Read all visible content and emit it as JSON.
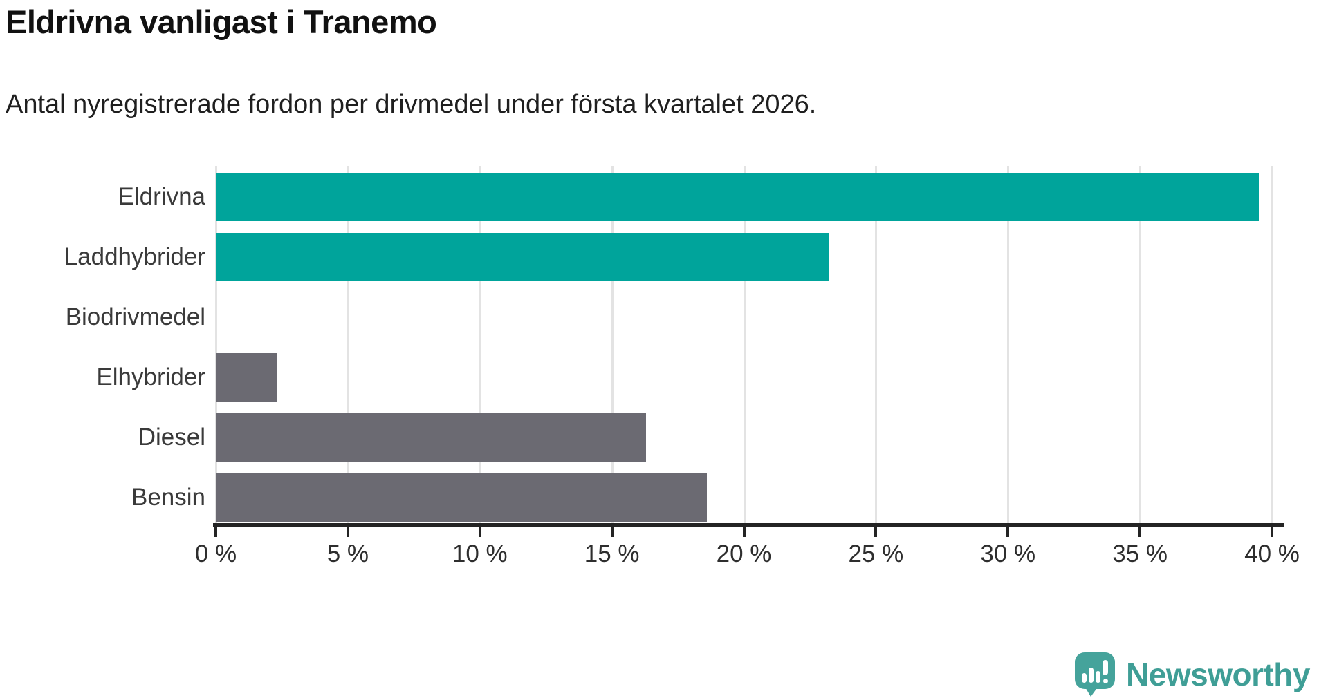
{
  "header": {
    "title": "Eldrivna vanligast i Tranemo",
    "subtitle": "Antal nyregistrerade fordon per drivmedel under första kvartalet 2026."
  },
  "chart_data": {
    "type": "bar",
    "orientation": "horizontal",
    "title": "Eldrivna vanligast i Tranemo",
    "subtitle": "Antal nyregistrerade fordon per drivmedel under första kvartalet 2026.",
    "categories": [
      "Eldrivna",
      "Laddhybrider",
      "Biodrivmedel",
      "Elhybrider",
      "Diesel",
      "Bensin"
    ],
    "values": [
      39.5,
      23.2,
      0,
      2.3,
      16.3,
      18.6
    ],
    "unit": "%",
    "xlim": [
      0,
      40
    ],
    "xticks": [
      0,
      5,
      10,
      15,
      20,
      25,
      30,
      35,
      40
    ],
    "xtick_labels": [
      "0 %",
      "5 %",
      "10 %",
      "15 %",
      "20 %",
      "25 %",
      "30 %",
      "35 %",
      "40 %"
    ],
    "bar_colors": [
      "#00a49b",
      "#00a49b",
      "#6b6a72",
      "#6b6a72",
      "#6b6a72",
      "#6b6a72"
    ],
    "grid": true,
    "legend": false
  },
  "colors": {
    "accent_teal": "#00a49b",
    "neutral_gray": "#6b6a72",
    "gridline": "#e3e3e3",
    "axis": "#242424",
    "logo_teal": "#3f9e96"
  },
  "footer": {
    "logo_text": "Newsworthy"
  }
}
